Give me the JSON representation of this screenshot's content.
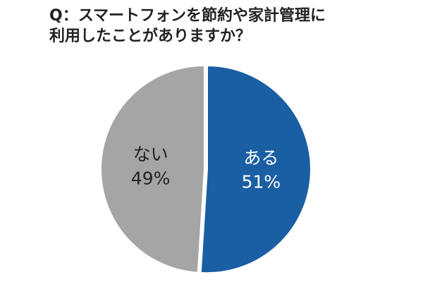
{
  "chart_data": {
    "type": "pie",
    "title_lines": [
      "Q：スマートフォンを節約や家計管理に",
      "利用したことがありますか？"
    ],
    "slices": [
      {
        "label": "ある",
        "value": 51,
        "value_label": "51%",
        "color": "#1a5ea3",
        "text_color": "#ffffff"
      },
      {
        "label": "ない",
        "value": 49,
        "value_label": "49%",
        "color": "#a5a5a5",
        "text_color": "#222222"
      }
    ],
    "start": "12 o'clock",
    "direction": "clockwise",
    "exploded_slice": "ある",
    "legend": "none"
  }
}
